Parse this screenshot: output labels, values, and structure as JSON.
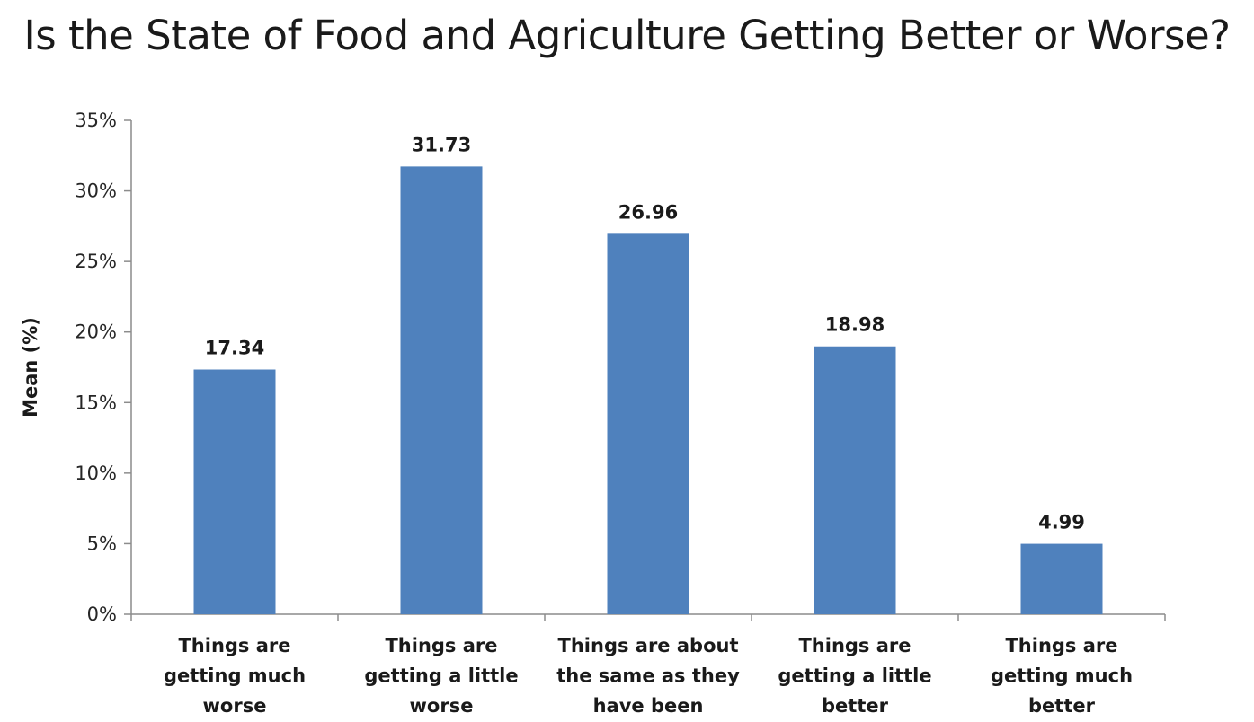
{
  "chart_data": {
    "type": "bar",
    "title": "Is the State of Food and Agriculture Getting Better or Worse?",
    "xlabel": "",
    "ylabel": "Mean (%)",
    "ylim": [
      0,
      35
    ],
    "yticks": [
      0,
      5,
      10,
      15,
      20,
      25,
      30,
      35
    ],
    "ytick_labels": [
      "0%",
      "5%",
      "10%",
      "15%",
      "20%",
      "25%",
      "30%",
      "35%"
    ],
    "grid": false,
    "legend": "none",
    "colors": {
      "bar": "#4f81bd",
      "axis": "#8c8c8c"
    },
    "categories": [
      [
        "Things are",
        "getting much",
        "worse"
      ],
      [
        "Things are",
        "getting a little",
        "worse"
      ],
      [
        "Things are about",
        "the same as they",
        "have been"
      ],
      [
        "Things are",
        "getting a little",
        "better"
      ],
      [
        "Things are",
        "getting much",
        "better"
      ]
    ],
    "values": [
      17.34,
      31.73,
      26.96,
      18.98,
      4.99
    ],
    "data_labels": [
      "17.34",
      "31.73",
      "26.96",
      "18.98",
      "4.99"
    ]
  }
}
